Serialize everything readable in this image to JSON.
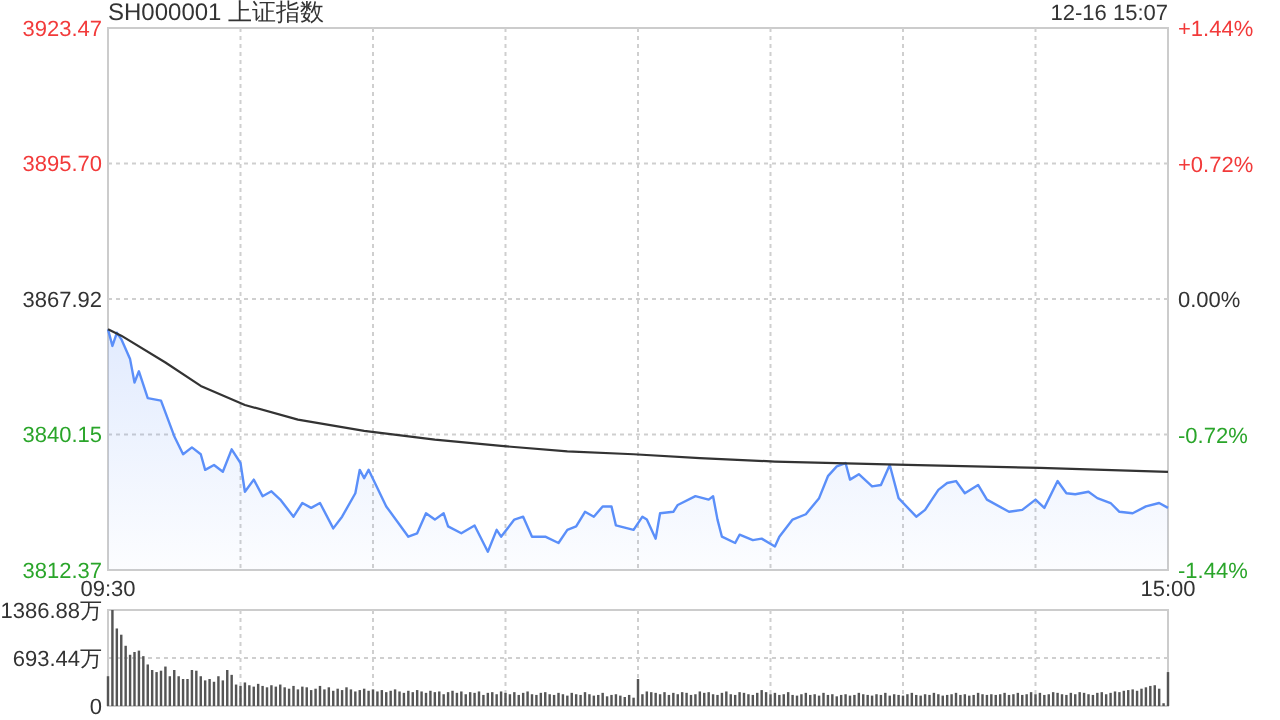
{
  "chart_data": [
    {
      "type": "line",
      "title": "SH000001 上证指数",
      "annotations": [
        "12-16 15:07"
      ],
      "categories": [
        "09:30",
        null,
        null,
        null,
        null,
        null,
        null,
        null,
        null,
        null,
        null,
        null,
        null,
        null,
        null,
        null,
        null,
        null,
        null,
        null,
        null,
        null,
        null,
        null,
        null,
        null,
        null,
        null,
        null,
        null,
        null,
        null,
        null,
        null,
        null,
        null,
        null,
        null,
        null,
        null,
        null,
        null,
        null,
        null,
        null,
        null,
        null,
        null,
        null,
        null,
        null,
        null,
        null,
        null,
        null,
        null,
        null,
        null,
        null,
        null,
        null,
        null,
        null,
        null,
        null,
        null,
        null,
        null,
        null,
        null,
        null,
        null,
        null,
        null,
        null,
        null,
        null,
        null,
        null,
        null,
        null,
        null,
        null,
        null,
        null,
        null,
        null,
        null,
        null,
        null,
        null,
        null,
        null,
        null,
        null,
        null,
        null,
        null,
        null,
        null,
        null,
        null,
        null,
        null,
        null,
        null,
        null,
        null,
        null,
        null,
        null,
        null,
        null,
        null,
        null,
        null,
        null,
        null,
        null,
        null,
        null,
        null,
        null,
        null,
        null,
        null,
        null,
        null,
        null,
        null,
        null,
        null,
        null,
        null,
        null,
        null,
        null,
        null,
        null,
        null,
        null,
        null,
        null,
        null,
        null,
        null,
        null,
        null,
        null,
        null,
        null,
        null,
        null,
        null,
        null,
        null,
        null,
        null,
        null,
        null,
        null,
        null,
        null,
        null,
        null,
        null,
        null,
        null,
        null,
        null,
        null,
        null,
        null,
        null,
        null,
        null,
        null,
        null,
        null,
        null,
        null,
        null,
        null,
        null,
        null,
        null,
        null,
        null,
        null,
        null,
        null,
        null,
        null,
        null,
        null,
        null,
        null,
        null,
        null,
        null,
        null,
        null,
        null,
        null,
        null,
        null,
        null,
        null,
        null,
        null,
        null,
        null,
        null,
        null,
        null,
        null,
        null,
        null,
        null,
        null,
        null,
        null,
        null,
        null,
        null,
        null,
        null,
        null,
        null,
        null,
        null,
        null,
        null,
        null,
        null,
        null,
        null,
        null,
        null,
        null,
        "15:00"
      ],
      "ylim": [
        3812.37,
        3923.47
      ],
      "yticks": [
        3812.37,
        3840.15,
        3867.92,
        {
          "value": 3895.7,
          "label": "3895.70"
        },
        3923.47
      ],
      "y2lim": [
        -1.44,
        1.44
      ],
      "y2ticks": [
        {
          "value": -1.44,
          "label": "-1.44%"
        },
        {
          "value": -0.72,
          "label": "-0.72%"
        },
        {
          "value": 0,
          "label": "0.00%"
        },
        {
          "value": 0.72,
          "label": "+0.72%"
        },
        {
          "value": 1.44,
          "label": "+1.44%"
        }
      ],
      "grid": true,
      "series": [
        {
          "type": "area",
          "color": "#5b8ff9",
          "values": [
            3861.7,
            3858.3,
            3861.0,
            3859.7,
            null,
            3855.6,
            3850.8,
            3853.1,
            null,
            3847.6,
            null,
            null,
            3847.1,
            null,
            null,
            3839.8,
            null,
            3836.1,
            null,
            3837.5,
            null,
            3836.1,
            3832.9,
            null,
            3833.9,
            null,
            3832.5,
            null,
            3837.1,
            null,
            3834.3,
            3828.4,
            null,
            3830.9,
            null,
            3827.5,
            null,
            3828.5,
            null,
            3826.8,
            null,
            null,
            3823.3,
            null,
            3826.1,
            null,
            3825.1,
            null,
            3826.1,
            null,
            null,
            3820.9,
            null,
            3823.3,
            null,
            null,
            3828.1,
            3832.9,
            3831.2,
            3832.9,
            null,
            null,
            null,
            3825.4,
            null,
            null,
            null,
            null,
            3819.2,
            null,
            3819.9,
            null,
            3824.0,
            null,
            3822.7,
            null,
            3824.0,
            3821.3,
            null,
            null,
            3819.9,
            null,
            null,
            3821.5,
            null,
            null,
            3816.1,
            null,
            3820.6,
            3819.2,
            null,
            null,
            3822.7,
            null,
            3823.3,
            null,
            3819.2,
            null,
            null,
            3819.2,
            null,
            null,
            3817.9,
            null,
            3820.6,
            null,
            3821.3,
            null,
            3824.3,
            null,
            3823.3,
            null,
            3825.4,
            null,
            3825.4,
            3821.5,
            null,
            null,
            null,
            3820.6,
            null,
            3823.3,
            3822.7,
            null,
            3818.8,
            3824.0,
            null,
            null,
            3824.3,
            3825.7,
            null,
            null,
            null,
            3827.5,
            null,
            null,
            3826.8,
            3827.5,
            3822.7,
            3819.2,
            null,
            null,
            3817.9,
            3819.6,
            null,
            null,
            3818.5,
            null,
            3818.8,
            null,
            null,
            3817.2,
            3819.2,
            null,
            null,
            3822.7,
            null,
            null,
            3823.8,
            null,
            null,
            3827.1,
            null,
            3831.6,
            null,
            3833.6,
            null,
            3834.3,
            3830.9,
            null,
            3832.0,
            null,
            null,
            3829.5,
            null,
            3829.8,
            null,
            3833.9,
            null,
            3827.1,
            null,
            null,
            null,
            3823.3,
            null,
            3824.7,
            null,
            null,
            3828.8,
            null,
            3830.2,
            null,
            3830.6,
            null,
            3828.1,
            null,
            null,
            3829.8,
            null,
            3826.8,
            null,
            null,
            null,
            null,
            3824.3,
            null,
            null,
            3824.7,
            null,
            null,
            3826.8,
            null,
            3825.1,
            null,
            null,
            3830.6,
            null,
            3828.1,
            null,
            3827.9,
            null,
            null,
            3828.4,
            null,
            3827.1,
            null,
            null,
            3826.1,
            null,
            3824.3,
            null,
            null,
            3824.0,
            null,
            null,
            3825.4,
            null,
            null,
            3826.1,
            null,
            3825.1
          ]
        },
        {
          "type": "line",
          "color": "#333333",
          "values": [
            3861.7,
            null,
            null,
            3860.4,
            null,
            null,
            null,
            null,
            null,
            null,
            null,
            null,
            null,
            3854.9,
            null,
            null,
            null,
            null,
            null,
            null,
            null,
            3850.1,
            null,
            null,
            null,
            null,
            null,
            null,
            null,
            null,
            null,
            3846.2,
            null,
            null,
            null,
            null,
            null,
            null,
            null,
            null,
            null,
            null,
            null,
            3843.2,
            null,
            null,
            null,
            null,
            null,
            null,
            null,
            null,
            null,
            null,
            null,
            null,
            null,
            null,
            3840.9,
            null,
            null,
            null,
            null,
            null,
            null,
            null,
            null,
            null,
            null,
            null,
            null,
            null,
            null,
            null,
            3839.1,
            null,
            null,
            null,
            null,
            null,
            null,
            null,
            null,
            null,
            null,
            null,
            null,
            null,
            null,
            3837.8,
            null,
            null,
            null,
            null,
            null,
            null,
            null,
            null,
            null,
            null,
            null,
            null,
            null,
            null,
            3836.7,
            null,
            null,
            null,
            null,
            null,
            null,
            null,
            null,
            null,
            null,
            null,
            null,
            null,
            null,
            3836.1,
            null,
            null,
            null,
            null,
            null,
            null,
            null,
            null,
            null,
            null,
            null,
            null,
            null,
            null,
            3835.3,
            null,
            null,
            null,
            null,
            null,
            null,
            null,
            null,
            null,
            null,
            null,
            null,
            null,
            null,
            null,
            null,
            3834.6,
            null,
            null,
            null,
            null,
            null,
            null,
            null,
            null,
            null,
            null,
            null,
            null,
            null,
            null,
            null,
            null,
            null,
            null,
            null,
            null,
            null,
            null,
            null,
            null,
            null,
            null,
            null,
            null,
            null,
            3833.9,
            null,
            null,
            null,
            null,
            null,
            null,
            null,
            null,
            null,
            null,
            null,
            null,
            null,
            null,
            null,
            null,
            null,
            null,
            null,
            null,
            null,
            null,
            null,
            null,
            null,
            null,
            null,
            null,
            null,
            3833.3,
            null,
            null,
            null,
            null,
            null,
            null,
            null,
            null,
            null,
            null,
            null,
            null,
            null,
            null,
            null,
            null,
            null,
            null,
            null,
            null,
            null,
            null,
            null,
            null,
            null,
            null,
            null,
            null,
            3832.5
          ]
        }
      ]
    },
    {
      "type": "bar",
      "tick_labels": "y",
      "grid": true,
      "categories": [
        null,
        null,
        null,
        null,
        null,
        null,
        null,
        null,
        null,
        null,
        null,
        null,
        null,
        null,
        null,
        null,
        null,
        null,
        null,
        null,
        null,
        null,
        null,
        null,
        null,
        null,
        null,
        null,
        null,
        null,
        null,
        null,
        null,
        null,
        null,
        null,
        null,
        null,
        null,
        null,
        null,
        null,
        null,
        null,
        null,
        null,
        null,
        null,
        null,
        null,
        null,
        null,
        null,
        null,
        null,
        null,
        null,
        null,
        null,
        null,
        null,
        null,
        null,
        null,
        null,
        null,
        null,
        null,
        null,
        null,
        null,
        null,
        null,
        null,
        null,
        null,
        null,
        null,
        null,
        null,
        null,
        null,
        null,
        null,
        null,
        null,
        null,
        null,
        null,
        null,
        null,
        null,
        null,
        null,
        null,
        null,
        null,
        null,
        null,
        null,
        null,
        null,
        null,
        null,
        null,
        null,
        null,
        null,
        null,
        null,
        null,
        null,
        null,
        null,
        null,
        null,
        null,
        null,
        null,
        null,
        null,
        null,
        null,
        null,
        null,
        null,
        null,
        null,
        null,
        null,
        null,
        null,
        null,
        null,
        null,
        null,
        null,
        null,
        null,
        null,
        null,
        null,
        null,
        null,
        null,
        null,
        null,
        null,
        null,
        null,
        null,
        null,
        null,
        null,
        null,
        null,
        null,
        null,
        null,
        null,
        null,
        null,
        null,
        null,
        null,
        null,
        null,
        null,
        null,
        null,
        null,
        null,
        null,
        null,
        null,
        null,
        null,
        null,
        null,
        null,
        null,
        null,
        null,
        null,
        null,
        null,
        null,
        null,
        null,
        null,
        null,
        null,
        null,
        null,
        null,
        null,
        null,
        null,
        null,
        null,
        null,
        null,
        null,
        null,
        null,
        null,
        null,
        null,
        null,
        null,
        null,
        null,
        null,
        null,
        null,
        null,
        null,
        null,
        null,
        null,
        null,
        null,
        null,
        null,
        null,
        null,
        null,
        null,
        null,
        null,
        null,
        null,
        null,
        null,
        null,
        null,
        null,
        null,
        null,
        null,
        null
      ],
      "ylim": [
        0,
        1386.88
      ],
      "yticks": [
        0,
        {
          "value": 693.44,
          "label": "693.44万"
        },
        {
          "value": 1386.88,
          "label": "1386.88万"
        }
      ],
      "series": [
        {
          "color": "#555555",
          "values": [
            430,
            1386.88,
            1120,
            1030,
            870,
            740,
            780,
            800,
            720,
            600,
            520,
            490,
            510,
            570,
            430,
            520,
            430,
            390,
            390,
            520,
            510,
            430,
            370,
            390,
            350,
            430,
            370,
            520,
            450,
            310,
            290,
            340,
            300,
            280,
            320,
            290,
            270,
            300,
            280,
            310,
            270,
            250,
            290,
            240,
            280,
            270,
            230,
            250,
            290,
            240,
            270,
            220,
            250,
            230,
            270,
            240,
            210,
            230,
            250,
            220,
            240,
            210,
            230,
            200,
            220,
            240,
            210,
            190,
            220,
            200,
            230,
            210,
            190,
            220,
            200,
            210,
            170,
            200,
            220,
            190,
            210,
            170,
            200,
            190,
            210,
            160,
            190,
            200,
            170,
            210,
            190,
            170,
            200,
            160,
            190,
            210,
            170,
            160,
            190,
            200,
            170,
            160,
            190,
            170,
            150,
            190,
            170,
            160,
            200,
            170,
            150,
            160,
            190,
            140,
            160,
            170,
            150,
            130,
            160,
            120,
            390,
            170,
            210,
            200,
            190,
            170,
            200,
            160,
            190,
            170,
            200,
            190,
            160,
            170,
            210,
            190,
            200,
            170,
            160,
            190,
            210,
            170,
            160,
            200,
            190,
            170,
            160,
            190,
            230,
            200,
            170,
            190,
            160,
            170,
            200,
            160,
            150,
            170,
            190,
            160,
            170,
            150,
            190,
            160,
            170,
            140,
            160,
            170,
            150,
            160,
            190,
            170,
            160,
            150,
            170,
            160,
            190,
            150,
            170,
            160,
            150,
            170,
            190,
            160,
            150,
            170,
            160,
            190,
            170,
            150,
            160,
            170,
            190,
            160,
            170,
            150,
            160,
            190,
            170,
            160,
            170,
            160,
            170,
            190,
            160,
            170,
            190,
            160,
            170,
            200,
            170,
            190,
            160,
            170,
            200,
            190,
            170,
            160,
            190,
            170,
            200,
            190,
            170,
            160,
            190,
            200,
            170,
            190,
            210,
            200,
            220,
            230,
            240,
            220,
            250,
            270,
            290,
            300,
            250,
            40,
            490
          ]
        }
      ]
    }
  ]
}
